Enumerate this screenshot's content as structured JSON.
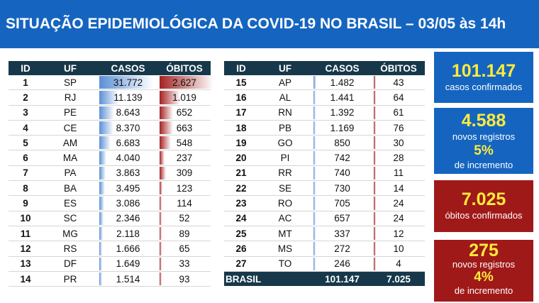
{
  "header": {
    "title": "SITUAÇÃO EPIDEMIOLÓGICA DA COVID-19 NO BRASIL – 03/05 às 14h"
  },
  "columns": {
    "id": "ID",
    "uf": "UF",
    "casos": "CASOS",
    "obitos": "ÓBITOS"
  },
  "left_rows": [
    {
      "id": "1",
      "uf": "SP",
      "casos": "31.772",
      "obitos": "2.627",
      "casos_n": 31772,
      "obitos_n": 2627
    },
    {
      "id": "2",
      "uf": "RJ",
      "casos": "11.139",
      "obitos": "1.019",
      "casos_n": 11139,
      "obitos_n": 1019
    },
    {
      "id": "3",
      "uf": "PE",
      "casos": "8.643",
      "obitos": "652",
      "casos_n": 8643,
      "obitos_n": 652
    },
    {
      "id": "4",
      "uf": "CE",
      "casos": "8.370",
      "obitos": "663",
      "casos_n": 8370,
      "obitos_n": 663
    },
    {
      "id": "5",
      "uf": "AM",
      "casos": "6.683",
      "obitos": "548",
      "casos_n": 6683,
      "obitos_n": 548
    },
    {
      "id": "6",
      "uf": "MA",
      "casos": "4.040",
      "obitos": "237",
      "casos_n": 4040,
      "obitos_n": 237
    },
    {
      "id": "7",
      "uf": "PA",
      "casos": "3.863",
      "obitos": "309",
      "casos_n": 3863,
      "obitos_n": 309
    },
    {
      "id": "8",
      "uf": "BA",
      "casos": "3.495",
      "obitos": "123",
      "casos_n": 3495,
      "obitos_n": 123
    },
    {
      "id": "9",
      "uf": "ES",
      "casos": "3.086",
      "obitos": "114",
      "casos_n": 3086,
      "obitos_n": 114
    },
    {
      "id": "10",
      "uf": "SC",
      "casos": "2.346",
      "obitos": "52",
      "casos_n": 2346,
      "obitos_n": 52
    },
    {
      "id": "11",
      "uf": "MG",
      "casos": "2.118",
      "obitos": "89",
      "casos_n": 2118,
      "obitos_n": 89
    },
    {
      "id": "12",
      "uf": "RS",
      "casos": "1.666",
      "obitos": "65",
      "casos_n": 1666,
      "obitos_n": 65
    },
    {
      "id": "13",
      "uf": "DF",
      "casos": "1.649",
      "obitos": "33",
      "casos_n": 1649,
      "obitos_n": 33
    },
    {
      "id": "14",
      "uf": "PR",
      "casos": "1.514",
      "obitos": "93",
      "casos_n": 1514,
      "obitos_n": 93
    }
  ],
  "right_rows": [
    {
      "id": "15",
      "uf": "AP",
      "casos": "1.482",
      "obitos": "43",
      "casos_n": 1482,
      "obitos_n": 43
    },
    {
      "id": "16",
      "uf": "AL",
      "casos": "1.441",
      "obitos": "64",
      "casos_n": 1441,
      "obitos_n": 64
    },
    {
      "id": "17",
      "uf": "RN",
      "casos": "1.392",
      "obitos": "61",
      "casos_n": 1392,
      "obitos_n": 61
    },
    {
      "id": "18",
      "uf": "PB",
      "casos": "1.169",
      "obitos": "76",
      "casos_n": 1169,
      "obitos_n": 76
    },
    {
      "id": "19",
      "uf": "GO",
      "casos": "850",
      "obitos": "30",
      "casos_n": 850,
      "obitos_n": 30
    },
    {
      "id": "20",
      "uf": "PI",
      "casos": "742",
      "obitos": "28",
      "casos_n": 742,
      "obitos_n": 28
    },
    {
      "id": "21",
      "uf": "RR",
      "casos": "740",
      "obitos": "11",
      "casos_n": 740,
      "obitos_n": 11
    },
    {
      "id": "22",
      "uf": "SE",
      "casos": "730",
      "obitos": "14",
      "casos_n": 730,
      "obitos_n": 14
    },
    {
      "id": "23",
      "uf": "RO",
      "casos": "705",
      "obitos": "24",
      "casos_n": 705,
      "obitos_n": 24
    },
    {
      "id": "24",
      "uf": "AC",
      "casos": "657",
      "obitos": "24",
      "casos_n": 657,
      "obitos_n": 24
    },
    {
      "id": "25",
      "uf": "MT",
      "casos": "337",
      "obitos": "12",
      "casos_n": 337,
      "obitos_n": 12
    },
    {
      "id": "26",
      "uf": "MS",
      "casos": "272",
      "obitos": "10",
      "casos_n": 272,
      "obitos_n": 10
    },
    {
      "id": "27",
      "uf": "TO",
      "casos": "246",
      "obitos": "4",
      "casos_n": 246,
      "obitos_n": 4
    }
  ],
  "total": {
    "label": "BRASIL",
    "casos": "101.147",
    "obitos": "7.025"
  },
  "summary": {
    "casos": {
      "value": "101.147",
      "label": "casos confirmados"
    },
    "novos_casos": {
      "value": "4.588",
      "label": "novos registros",
      "percent": "5%",
      "label2": "de incremento"
    },
    "obitos": {
      "value": "7.025",
      "label": "óbitos confirmados"
    },
    "novos_obitos": {
      "value": "275",
      "label": "novos registros",
      "percent": "4%",
      "label2": "de incremento"
    }
  },
  "colors": {
    "header_blue": "#1565c0",
    "table_header": "#16384a",
    "box_red": "#a01919",
    "highlight_yellow": "#ffeb3b",
    "bar_blue": "#5b8fd6",
    "bar_red": "#a52222"
  }
}
